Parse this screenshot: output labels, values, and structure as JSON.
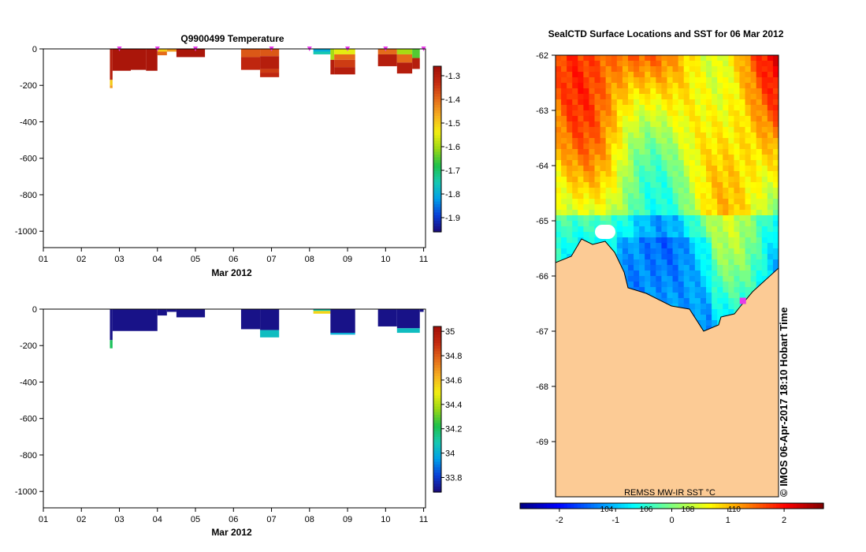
{
  "chart_data": [
    {
      "type": "heatmap",
      "id": "temperature-section",
      "title": "Q9900499  Temperature",
      "xlabel": "Mar 2012",
      "ylabel": "",
      "x_ticks": [
        "01",
        "02",
        "03",
        "04",
        "05",
        "06",
        "07",
        "08",
        "09",
        "10",
        "11"
      ],
      "xlim": [
        1,
        11.05
      ],
      "y_ticks": [
        0,
        -200,
        -400,
        -600,
        -800,
        -1000
      ],
      "ylim": [
        -1090,
        0
      ],
      "colorbar": {
        "ticks": [
          "-1.3",
          "-1.4",
          "-1.5",
          "-1.6",
          "-1.7",
          "-1.8",
          "-1.9"
        ],
        "range": [
          -1.96,
          -1.26
        ]
      },
      "surface_markers": [
        3.0,
        4.0,
        5.0,
        7.0,
        8.0,
        9.0,
        10.0,
        11.0
      ],
      "profiles": [
        {
          "x0": 2.75,
          "x1": 2.82,
          "segments": [
            {
              "top": 0,
              "bot": -170,
              "value": -1.3
            },
            {
              "top": -170,
              "bot": -200,
              "value": -1.5
            },
            {
              "top": -200,
              "bot": -215,
              "value": -1.45
            }
          ]
        },
        {
          "x0": 2.82,
          "x1": 3.3,
          "segments": [
            {
              "top": 0,
              "bot": -120,
              "value": -1.28
            }
          ]
        },
        {
          "x0": 3.3,
          "x1": 3.7,
          "segments": [
            {
              "top": 0,
              "bot": -115,
              "value": -1.28
            }
          ]
        },
        {
          "x0": 3.7,
          "x1": 4.0,
          "segments": [
            {
              "top": 0,
              "bot": -120,
              "value": -1.28
            }
          ]
        },
        {
          "x0": 4.0,
          "x1": 4.25,
          "segments": [
            {
              "top": 0,
              "bot": -15,
              "value": -1.5
            },
            {
              "top": -15,
              "bot": -35,
              "value": -1.4
            }
          ]
        },
        {
          "x0": 4.25,
          "x1": 4.5,
          "segments": [
            {
              "top": 0,
              "bot": -15,
              "value": -1.45
            }
          ]
        },
        {
          "x0": 4.5,
          "x1": 5.25,
          "segments": [
            {
              "top": 0,
              "bot": -45,
              "value": -1.28
            }
          ]
        },
        {
          "x0": 6.2,
          "x1": 6.7,
          "segments": [
            {
              "top": 0,
              "bot": -45,
              "value": -1.38
            },
            {
              "top": -45,
              "bot": -115,
              "value": -1.32
            }
          ]
        },
        {
          "x0": 6.7,
          "x1": 7.2,
          "segments": [
            {
              "top": 0,
              "bot": -40,
              "value": -1.38
            },
            {
              "top": -40,
              "bot": -110,
              "value": -1.3
            },
            {
              "top": -110,
              "bot": -130,
              "value": -1.35
            },
            {
              "top": -130,
              "bot": -155,
              "value": -1.32
            }
          ]
        },
        {
          "x0": 8.1,
          "x1": 8.55,
          "segments": [
            {
              "top": 0,
              "bot": -15,
              "value": -1.8
            },
            {
              "top": -15,
              "bot": -30,
              "value": -1.75
            }
          ]
        },
        {
          "x0": 8.55,
          "x1": 8.65,
          "segments": [
            {
              "top": 0,
              "bot": -60,
              "value": -1.6
            },
            {
              "top": -60,
              "bot": -140,
              "value": -1.3
            }
          ]
        },
        {
          "x0": 8.65,
          "x1": 9.2,
          "segments": [
            {
              "top": 0,
              "bot": -30,
              "value": -1.55
            },
            {
              "top": -30,
              "bot": -60,
              "value": -1.4
            },
            {
              "top": -60,
              "bot": -100,
              "value": -1.35
            },
            {
              "top": -100,
              "bot": -140,
              "value": -1.3
            }
          ]
        },
        {
          "x0": 9.8,
          "x1": 10.3,
          "segments": [
            {
              "top": 0,
              "bot": -30,
              "value": -1.4
            },
            {
              "top": -30,
              "bot": -95,
              "value": -1.3
            }
          ]
        },
        {
          "x0": 10.3,
          "x1": 10.7,
          "segments": [
            {
              "top": 0,
              "bot": -30,
              "value": -1.6
            },
            {
              "top": -30,
              "bot": -75,
              "value": -1.4
            },
            {
              "top": -75,
              "bot": -135,
              "value": -1.3
            }
          ]
        },
        {
          "x0": 10.7,
          "x1": 10.9,
          "segments": [
            {
              "top": 0,
              "bot": -50,
              "value": -1.65
            },
            {
              "top": -50,
              "bot": -110,
              "value": -1.3
            }
          ]
        }
      ]
    },
    {
      "type": "heatmap",
      "id": "salinity-section",
      "title": "",
      "xlabel": "Mar 2012",
      "ylabel": "",
      "x_ticks": [
        "01",
        "02",
        "03",
        "04",
        "05",
        "06",
        "07",
        "08",
        "09",
        "10",
        "11"
      ],
      "xlim": [
        1,
        11.05
      ],
      "y_ticks": [
        0,
        -200,
        -400,
        -600,
        -800,
        -1000
      ],
      "ylim": [
        -1090,
        0
      ],
      "colorbar": {
        "ticks": [
          "35",
          "34.8",
          "34.6",
          "34.4",
          "34.2",
          "34",
          "33.8"
        ],
        "range": [
          33.68,
          35.04
        ]
      },
      "profiles": [
        {
          "x0": 2.75,
          "x1": 2.82,
          "segments": [
            {
              "top": 0,
              "bot": -170,
              "value": 33.7
            },
            {
              "top": -170,
              "bot": -215,
              "value": 34.2
            }
          ]
        },
        {
          "x0": 2.82,
          "x1": 4.0,
          "segments": [
            {
              "top": 0,
              "bot": -120,
              "value": 33.7
            }
          ]
        },
        {
          "x0": 4.0,
          "x1": 4.25,
          "segments": [
            {
              "top": 0,
              "bot": -35,
              "value": 33.7
            }
          ]
        },
        {
          "x0": 4.25,
          "x1": 4.5,
          "segments": [
            {
              "top": 0,
              "bot": -15,
              "value": 33.7
            }
          ]
        },
        {
          "x0": 4.5,
          "x1": 5.25,
          "segments": [
            {
              "top": 0,
              "bot": -45,
              "value": 33.7
            }
          ]
        },
        {
          "x0": 6.2,
          "x1": 6.7,
          "segments": [
            {
              "top": 0,
              "bot": -110,
              "value": 33.7
            }
          ]
        },
        {
          "x0": 6.7,
          "x1": 7.2,
          "segments": [
            {
              "top": 0,
              "bot": -115,
              "value": 33.7
            },
            {
              "top": -115,
              "bot": -155,
              "value": 34.05
            }
          ]
        },
        {
          "x0": 8.1,
          "x1": 8.55,
          "segments": [
            {
              "top": 0,
              "bot": -10,
              "value": 34.1
            },
            {
              "top": -10,
              "bot": -25,
              "value": 34.55
            }
          ]
        },
        {
          "x0": 8.55,
          "x1": 9.2,
          "segments": [
            {
              "top": 0,
              "bot": -130,
              "value": 33.7
            },
            {
              "top": -130,
              "bot": -140,
              "value": 34.0
            }
          ]
        },
        {
          "x0": 9.8,
          "x1": 10.3,
          "segments": [
            {
              "top": 0,
              "bot": -95,
              "value": 33.7
            }
          ]
        },
        {
          "x0": 10.3,
          "x1": 10.9,
          "segments": [
            {
              "top": 0,
              "bot": -105,
              "value": 33.7
            },
            {
              "top": -105,
              "bot": -130,
              "value": 34.05
            }
          ]
        },
        {
          "x0": 10.9,
          "x1": 11.0,
          "segments": [
            {
              "top": 0,
              "bot": -15,
              "value": 33.7
            }
          ]
        }
      ]
    },
    {
      "type": "heatmap",
      "id": "sst-map",
      "title": "SealCTD Surface Locations and SST for 06 Mar 2012",
      "xlabel": "",
      "ylabel": "",
      "lat_ticks": [
        "-62",
        "-63",
        "-64",
        "-65",
        "-66",
        "-67",
        "-68",
        "-69"
      ],
      "lat_range": [
        -62,
        -70
      ],
      "product_label": "REMSS MW-IR SST °C",
      "colorbar": {
        "ticks": [
          "-2",
          "-1",
          "0",
          "1",
          "2"
        ],
        "range": [
          -2.7,
          2.7
        ],
        "lon_overlay_labels": [
          "104",
          "106",
          "108",
          "110"
        ]
      },
      "seal_location": {
        "lat": -66.45,
        "lon_fraction": 0.84
      },
      "credit": "© IMOS 06-Apr-2017 18:10 Hobart Time"
    }
  ],
  "colors": {
    "land": "#fccb95",
    "marker": "#e83ae8",
    "jet": [
      "#00007f",
      "#0000ff",
      "#007fff",
      "#00ffff",
      "#7fff7f",
      "#ffff00",
      "#ff7f00",
      "#ff0000",
      "#7f0000"
    ],
    "parula_like": [
      "#1a0a7a",
      "#0a3fd8",
      "#00a0e8",
      "#16c8b0",
      "#1ec04a",
      "#9ad814",
      "#f2ee10",
      "#f6b020",
      "#e46a1a",
      "#c42a10",
      "#a00e08"
    ]
  }
}
